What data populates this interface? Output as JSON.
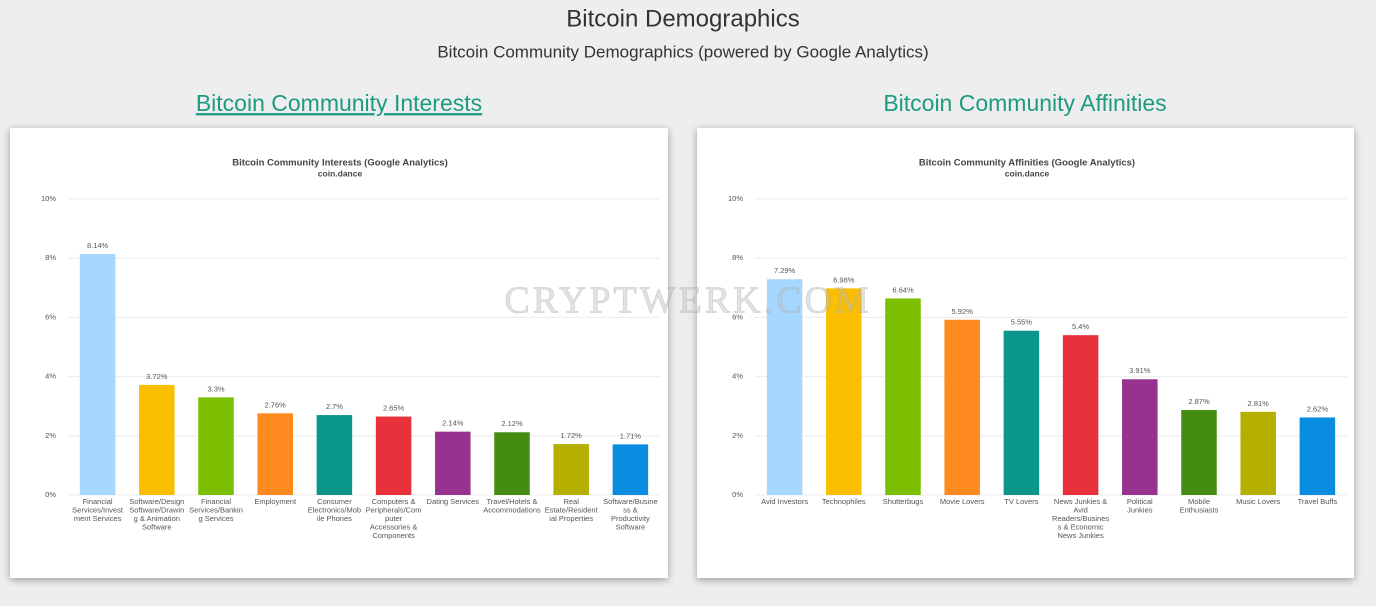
{
  "header": {
    "title": "Bitcoin Demographics",
    "subtitle": "Bitcoin Community Demographics (powered by Google Analytics)"
  },
  "sections": [
    {
      "heading": "Bitcoin Community Interests"
    },
    {
      "heading": "Bitcoin Community Affinities"
    }
  ],
  "watermark": "CRYPTWERK.COM",
  "chart_data": [
    {
      "type": "bar",
      "title": "Bitcoin Community Interests (Google Analytics)",
      "subtitle": "coin.dance",
      "categories": [
        "Financial Services/Investment Services",
        "Software/Design Software/Drawing & Animation Software",
        "Financial Services/Banking Services",
        "Employment",
        "Consumer Electronics/Mobile Phones",
        "Computers & Peripherals/Computer Accessories & Components",
        "Dating Services",
        "Travel/Hotels & Accommodations",
        "Real Estate/Residential Properties",
        "Software/Business & Productivity Software"
      ],
      "values": [
        8.14,
        3.72,
        3.3,
        2.76,
        2.7,
        2.65,
        2.14,
        2.12,
        1.72,
        1.71
      ],
      "value_labels": [
        "8.14%",
        "3.72%",
        "3.3%",
        "2.76%",
        "2.7%",
        "2.65%",
        "2.14%",
        "2.12%",
        "1.72%",
        "1.71%"
      ],
      "colors": [
        "#a6d8ff",
        "#fbbf00",
        "#7cbf00",
        "#ff8a1f",
        "#0a968a",
        "#e8313a",
        "#97338f",
        "#438d12",
        "#b5b000",
        "#0a8ce0"
      ],
      "ylim": [
        0,
        10
      ],
      "yticks": [
        {
          "value": 0,
          "label": "0%"
        },
        {
          "value": 2,
          "label": "2%"
        },
        {
          "value": 4,
          "label": "4%"
        },
        {
          "value": 6,
          "label": "6%"
        },
        {
          "value": 8,
          "label": "8%"
        },
        {
          "value": 10,
          "label": "10%"
        }
      ],
      "grid": true
    },
    {
      "type": "bar",
      "title": "Bitcoin Community Affinities (Google Analytics)",
      "subtitle": "coin.dance",
      "categories": [
        "Avid Investors",
        "Technophiles",
        "Shutterbugs",
        "Movie Lovers",
        "TV Lovers",
        "News Junkies & Avid Readers/Business & Economic News Junkies",
        "Political Junkies",
        "Mobile Enthusiasts",
        "Music Lovers",
        "Travel Buffs"
      ],
      "values": [
        7.29,
        6.98,
        6.64,
        5.92,
        5.55,
        5.4,
        3.91,
        2.87,
        2.81,
        2.62
      ],
      "value_labels": [
        "7.29%",
        "6.98%",
        "6.64%",
        "5.92%",
        "5.55%",
        "5.4%",
        "3.91%",
        "2.87%",
        "2.81%",
        "2.62%"
      ],
      "colors": [
        "#a6d8ff",
        "#fbbf00",
        "#7cbf00",
        "#ff8a1f",
        "#0a968a",
        "#e8313a",
        "#97338f",
        "#438d12",
        "#b5b000",
        "#0a8ce0"
      ],
      "ylim": [
        0,
        10
      ],
      "yticks": [
        {
          "value": 0,
          "label": "0%"
        },
        {
          "value": 2,
          "label": "2%"
        },
        {
          "value": 4,
          "label": "4%"
        },
        {
          "value": 6,
          "label": "6%"
        },
        {
          "value": 8,
          "label": "8%"
        },
        {
          "value": 10,
          "label": "10%"
        }
      ],
      "grid": true
    }
  ]
}
